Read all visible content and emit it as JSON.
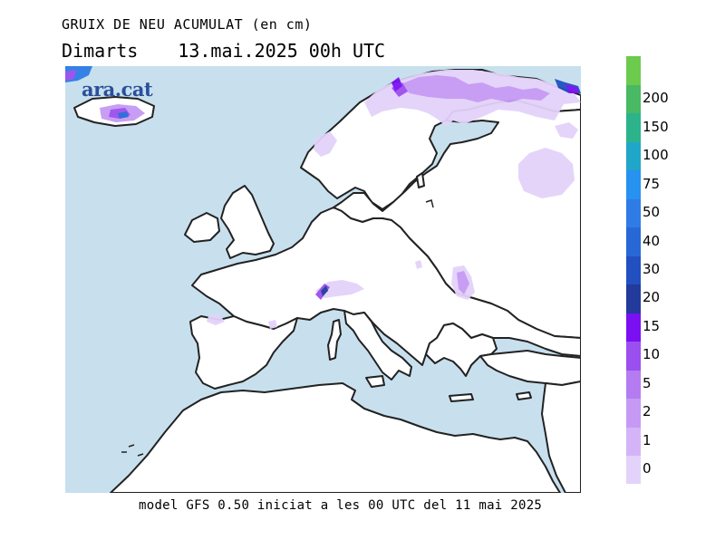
{
  "header": {
    "title": "GRUIX DE NEU ACUMULAT (en cm)",
    "day": "Dimarts",
    "date": "13.mai.2025 00h UTC"
  },
  "footer": {
    "model_text": "model GFS 0.50 iniciat a les 00 UTC del 11 mai 2025"
  },
  "logo": {
    "text": "ara.cat",
    "color": "#2b4f9a"
  },
  "map": {
    "sea_color": "#c8e0ee",
    "land_color": "#ffffff",
    "coast_color": "#222222"
  },
  "legend": {
    "levels": [
      {
        "label": "0",
        "color": "#e3d2fa"
      },
      {
        "label": "1",
        "color": "#d3b5f7"
      },
      {
        "label": "2",
        "color": "#c599f4"
      },
      {
        "label": "5",
        "color": "#b47cf0"
      },
      {
        "label": "10",
        "color": "#9a4fee"
      },
      {
        "label": "15",
        "color": "#7a10f2"
      },
      {
        "label": "20",
        "color": "#213a9c"
      },
      {
        "label": "30",
        "color": "#2250c0"
      },
      {
        "label": "40",
        "color": "#2868d6"
      },
      {
        "label": "50",
        "color": "#2f7ce6"
      },
      {
        "label": "75",
        "color": "#2792f0"
      },
      {
        "label": "100",
        "color": "#1fa6c9"
      },
      {
        "label": "150",
        "color": "#2cb38c"
      },
      {
        "label": "200",
        "color": "#49b964"
      },
      {
        "label": "",
        "color": "#6ccb4d"
      }
    ]
  }
}
